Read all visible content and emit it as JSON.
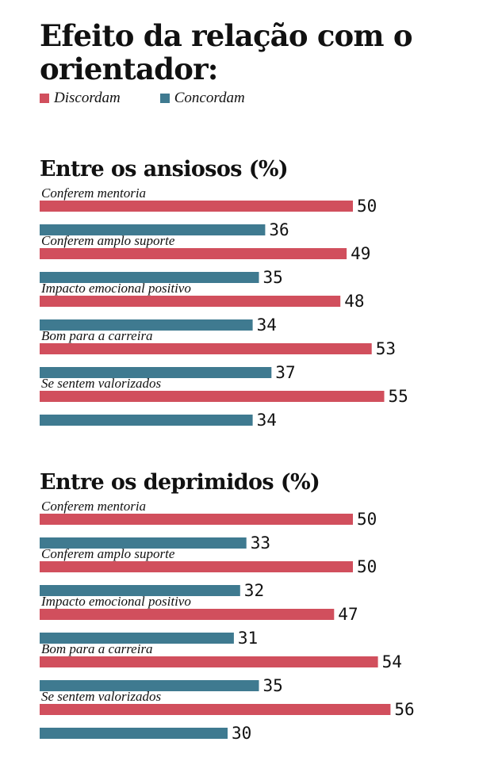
{
  "title": "Efeito da relação com o orientador:",
  "legend": [
    {
      "label": "Discordam",
      "color": "#d14f5d"
    },
    {
      "label": "Concordam",
      "color": "#3f7a90"
    }
  ],
  "chart_data": [
    {
      "type": "bar",
      "orientation": "horizontal",
      "title": "Entre os ansiosos (%)",
      "categories": [
        "Conferem mentoria",
        "Conferem amplo suporte",
        "Impacto emocional positivo",
        "Bom para a carreira",
        "Se sentem valorizados"
      ],
      "series": [
        {
          "name": "Discordam",
          "color": "#d14f5d",
          "values": [
            50,
            49,
            48,
            53,
            55
          ]
        },
        {
          "name": "Concordam",
          "color": "#3f7a90",
          "values": [
            36,
            35,
            34,
            37,
            34
          ]
        }
      ]
    },
    {
      "type": "bar",
      "orientation": "horizontal",
      "title": "Entre os deprimidos (%)",
      "categories": [
        "Conferem mentoria",
        "Conferem amplo suporte",
        "Impacto emocional positivo",
        "Bom para a carreira",
        "Se sentem valorizados"
      ],
      "series": [
        {
          "name": "Discordam",
          "color": "#d14f5d",
          "values": [
            50,
            50,
            47,
            54,
            56
          ]
        },
        {
          "name": "Concordam",
          "color": "#3f7a90",
          "values": [
            33,
            32,
            31,
            35,
            30
          ]
        }
      ]
    }
  ]
}
